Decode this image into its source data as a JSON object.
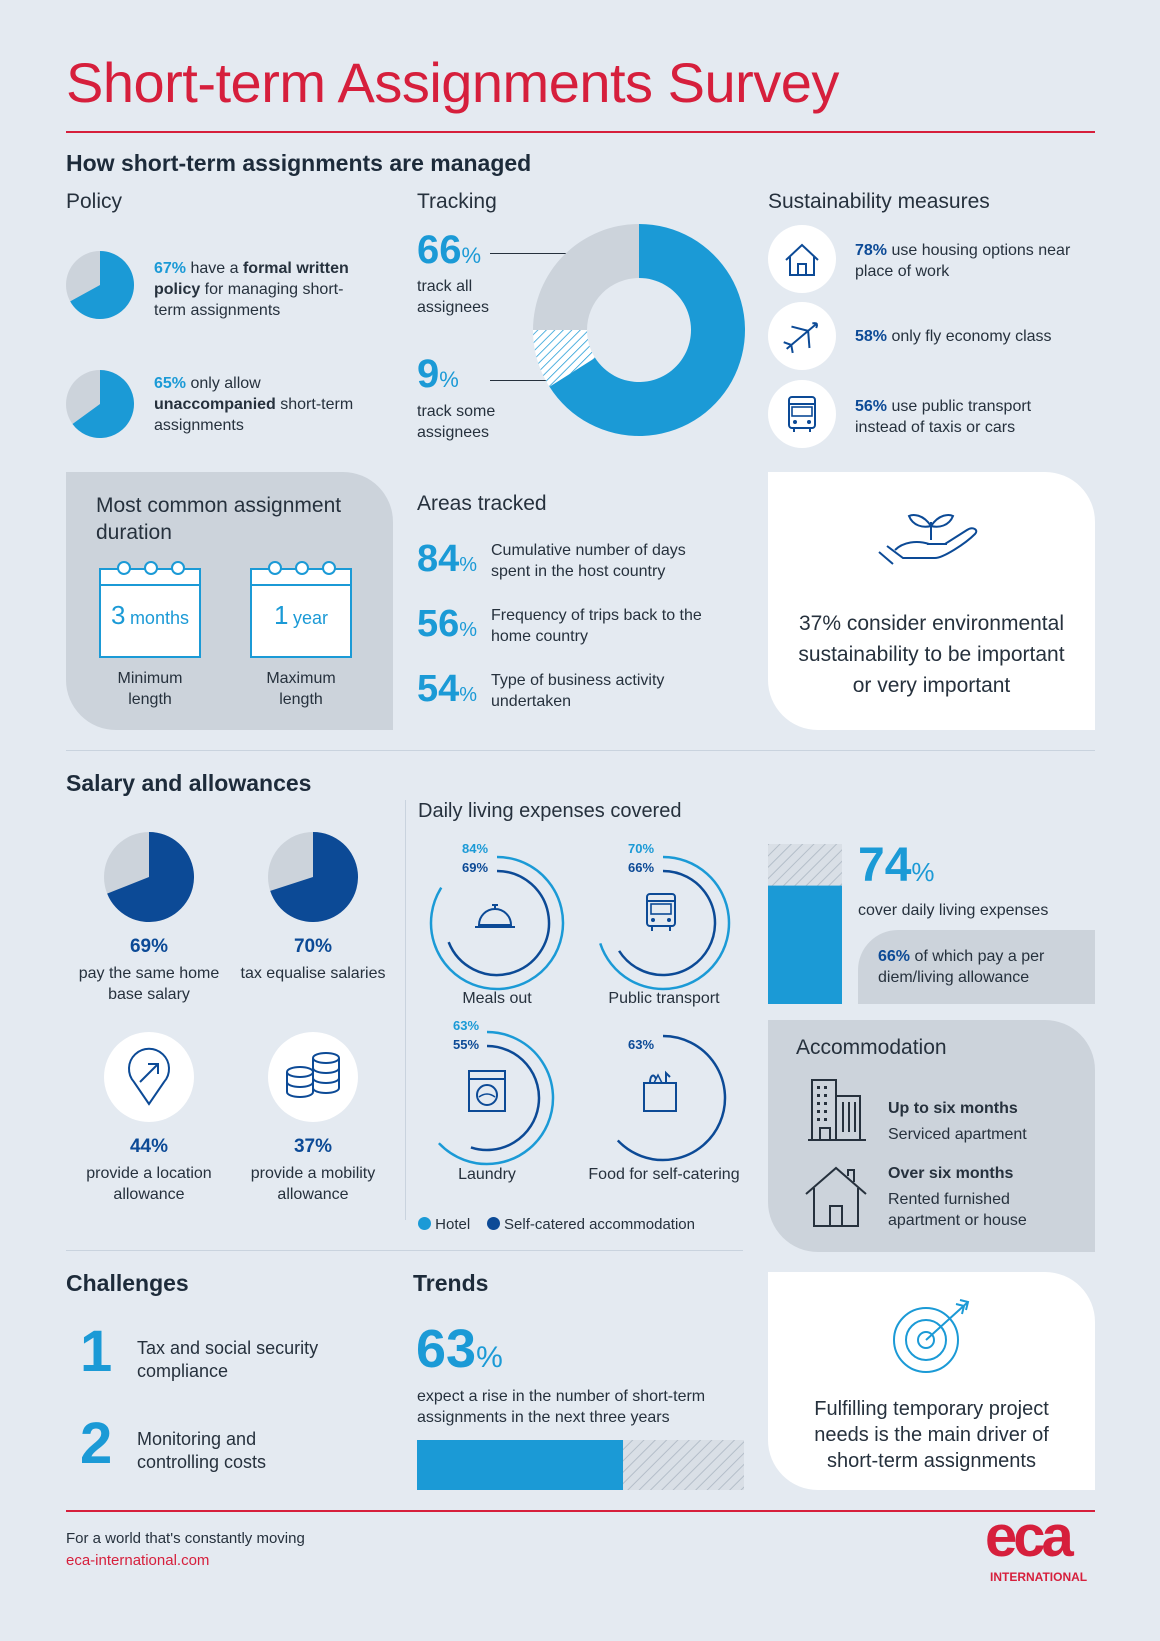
{
  "title": "Short-term Assignments Survey",
  "management": {
    "heading": "How short-term assignments are managed",
    "policy": {
      "heading": "Policy",
      "items": [
        {
          "value": 67,
          "pct": "67%",
          "pre": " have a ",
          "bold": "formal written policy",
          "post": " for managing short-term assignments"
        },
        {
          "value": 65,
          "pct": "65%",
          "pre": " only allow ",
          "bold": "unaccompanied",
          "post": " short-term assignments"
        }
      ]
    },
    "tracking": {
      "heading": "Tracking",
      "all": {
        "value": "66",
        "unit": "%",
        "label": "track all assignees"
      },
      "some": {
        "value": "9",
        "unit": "%",
        "label": "track some assignees"
      }
    },
    "sustainability": {
      "heading": "Sustainability measures",
      "items": [
        {
          "icon": "house-icon",
          "pct": "78%",
          "text": " use housing options near place of work"
        },
        {
          "icon": "airplane-icon",
          "pct": "58%",
          "text": " only fly economy class"
        },
        {
          "icon": "bus-icon",
          "pct": "56%",
          "text": " use public transport instead of taxis or cars"
        }
      ],
      "callout": "37% consider environmental sustainability to be important or very important"
    },
    "duration": {
      "heading": "Most common assignment duration",
      "min": {
        "num": "3",
        "unit": "months",
        "label": "Minimum length"
      },
      "max": {
        "num": "1",
        "unit": "year",
        "label": "Maximum length"
      }
    },
    "areas": {
      "heading": "Areas tracked",
      "items": [
        {
          "value": "84",
          "unit": "%",
          "label": "Cumulative number of days spent in the host country"
        },
        {
          "value": "56",
          "unit": "%",
          "label": "Frequency of trips back to the home country"
        },
        {
          "value": "54",
          "unit": "%",
          "label": "Type of business activity undertaken"
        }
      ]
    }
  },
  "salary": {
    "heading": "Salary and allowances",
    "stats": [
      {
        "value": 69,
        "pct": "69%",
        "label": "pay the same home base salary"
      },
      {
        "value": 70,
        "pct": "70%",
        "label": "tax equalise salaries"
      },
      {
        "icon": "location-arrow-icon",
        "pct": "44%",
        "label": "provide a location allowance"
      },
      {
        "icon": "coins-icon",
        "pct": "37%",
        "label": "provide a mobility allowance"
      }
    ],
    "daily": {
      "heading": "Daily living expenses covered",
      "items": [
        {
          "label": "Meals out",
          "icon": "food-cloche-icon",
          "hotel": "84%",
          "self": "69%",
          "hotel_v": 84,
          "self_v": 69
        },
        {
          "label": "Public transport",
          "icon": "bus-icon",
          "hotel": "70%",
          "self": "66%",
          "hotel_v": 70,
          "self_v": 66
        },
        {
          "label": "Laundry",
          "icon": "washing-machine-icon",
          "hotel": "63%",
          "self": "55%",
          "hotel_v": 63,
          "self_v": 55
        },
        {
          "label": "Food for self-catering",
          "icon": "grocery-bag-icon",
          "hotel": "",
          "self": "63%",
          "hotel_v": 0,
          "self_v": 63
        }
      ],
      "legend": [
        {
          "label": "Hotel",
          "color": "#1b9ad6"
        },
        {
          "label": "Self-catered accommodation",
          "color": "#0c4a96"
        }
      ]
    },
    "cover": {
      "value": "74",
      "unit": "%",
      "fill": 74,
      "label": "cover daily living expenses",
      "sub_pct": "66%",
      "sub_text": " of which pay a per diem/living allowance"
    },
    "accommodation": {
      "heading": "Accommodation",
      "items": [
        {
          "icon": "building-icon",
          "title": "Up to six months",
          "text": "Serviced apartment"
        },
        {
          "icon": "house-icon",
          "title": "Over six months",
          "text": "Rented furnished apartment or house"
        }
      ]
    }
  },
  "challenges": {
    "heading": "Challenges",
    "items": [
      {
        "num": "1",
        "text": "Tax and social security compliance"
      },
      {
        "num": "2",
        "text": "Monitoring and controlling costs"
      }
    ]
  },
  "trends": {
    "heading": "Trends",
    "value": "63",
    "unit": "%",
    "fill": 63,
    "text": "expect a rise in the number of short-term assignments in the next three years",
    "callout": "Fulfilling temporary project needs is the main driver of short-term assignments"
  },
  "footer": {
    "tagline": "For a world that's constantly moving",
    "url": "eca-international.com",
    "logo": "eca",
    "logo_sub": "INTERNATIONAL"
  },
  "colors": {
    "accent": "#d61f3c",
    "blue": "#1b9ad6",
    "navy": "#0c4a96",
    "grey": "#ccd3db"
  }
}
